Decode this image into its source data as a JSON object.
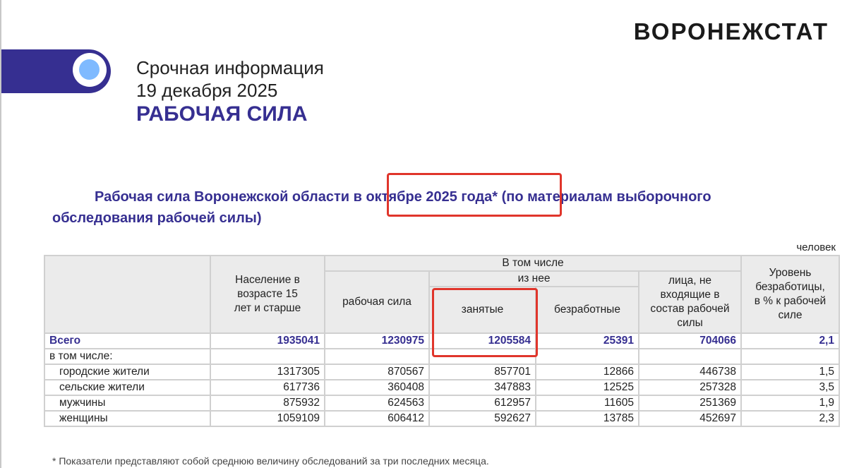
{
  "brand": "ВОРОНЕЖСТАТ",
  "header": {
    "line1": "Срочная информация",
    "line2": "19 декабря 2025",
    "heading": "РАБОЧАЯ СИЛА"
  },
  "title": {
    "before": "Рабочая сила Воронежской области ",
    "highlight": "в октябре 2025 года*",
    "after": " (по материалам выборочного обследования рабочей силы)"
  },
  "unit": "человек",
  "table": {
    "headers": {
      "population": "Население в возрасте 15 лет и старше",
      "including": "В том числе",
      "labor_force": "рабочая сила",
      "of_which": "из нее",
      "employed": "занятые",
      "unemployed": "безработные",
      "not_in_lf": "лица, не входящие в состав рабочей силы",
      "rate": "Уровень безработицы, в % к рабочей силе"
    },
    "total": {
      "label": "Всего",
      "values": [
        "1935041",
        "1230975",
        "1205584",
        "25391",
        "704066",
        "2,1"
      ]
    },
    "including_label": "в том числе:",
    "rows": [
      {
        "label": "городские жители",
        "values": [
          "1317305",
          "870567",
          "857701",
          "12866",
          "446738",
          "1,5"
        ]
      },
      {
        "label": "сельские жители",
        "values": [
          "617736",
          "360408",
          "347883",
          "12525",
          "257328",
          "3,5"
        ]
      },
      {
        "label": "мужчины",
        "values": [
          "875932",
          "624563",
          "612957",
          "11605",
          "251369",
          "1,9"
        ]
      },
      {
        "label": "женщины",
        "values": [
          "1059109",
          "606412",
          "592627",
          "13785",
          "452697",
          "2,3"
        ]
      }
    ]
  },
  "footnote": "* Показатели представляют собой среднюю величину обследований за три последних месяца.",
  "colors": {
    "brand_blue": "#362f91",
    "highlight_red": "#e0352b",
    "dot": "#7fbaff"
  }
}
